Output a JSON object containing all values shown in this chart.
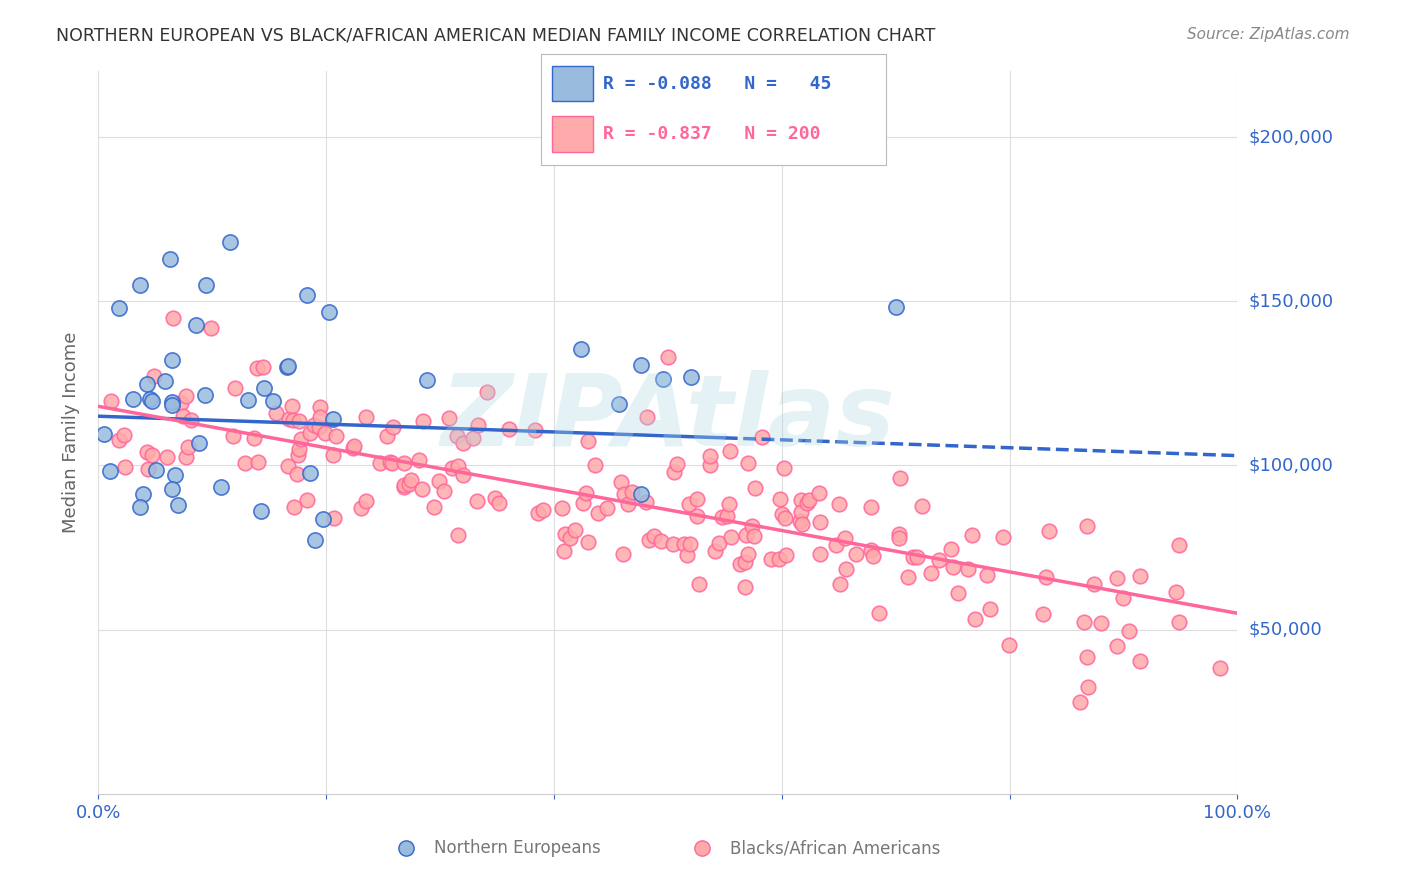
{
  "title": "NORTHERN EUROPEAN VS BLACK/AFRICAN AMERICAN MEDIAN FAMILY INCOME CORRELATION CHART",
  "source": "Source: ZipAtlas.com",
  "ylabel": "Median Family Income",
  "ytick_labels": [
    "$50,000",
    "$100,000",
    "$150,000",
    "$200,000"
  ],
  "ytick_values": [
    50000,
    100000,
    150000,
    200000
  ],
  "ylim": [
    0,
    220000
  ],
  "xlim": [
    0,
    1.0
  ],
  "watermark": "ZIPAtlas",
  "blue_color": "#99BBDD",
  "pink_color": "#FFAAAA",
  "line_blue": "#3366CC",
  "line_pink": "#FF6699",
  "label_blue": "Northern Europeans",
  "label_pink": "Blacks/African Americans",
  "blue_r": -0.088,
  "blue_n": 45,
  "pink_r": -0.837,
  "pink_n": 200,
  "title_color": "#333333",
  "axis_label_color": "#3366CC",
  "grid_color": "#DDDDDD",
  "background_color": "#FFFFFF"
}
